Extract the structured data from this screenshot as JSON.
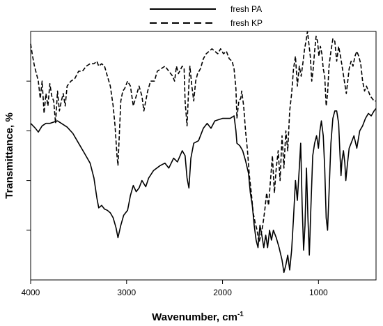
{
  "chart_data": {
    "type": "line",
    "xlabel": "Wavenumber, cm",
    "xlabel_superscript": "-1",
    "ylabel": "Transmittance, %",
    "xlim": [
      4000,
      400
    ],
    "x_reversed": true,
    "ylim": [
      0,
      100
    ],
    "y_tick_labels_shown": false,
    "grid": false,
    "legend_position": "top-center",
    "x_ticks": [
      4000,
      3000,
      2000,
      1000
    ],
    "x_tick_labels": [
      "4000",
      "3000",
      "2000",
      "1000"
    ],
    "series": [
      {
        "name": "fresh PA",
        "style": "solid",
        "color": "#000000",
        "points": [
          [
            4000,
            63
          ],
          [
            3950,
            61
          ],
          [
            3920,
            59.5
          ],
          [
            3880,
            62
          ],
          [
            3840,
            63
          ],
          [
            3800,
            63
          ],
          [
            3760,
            63.5
          ],
          [
            3720,
            64
          ],
          [
            3680,
            63
          ],
          [
            3620,
            61.5
          ],
          [
            3560,
            59
          ],
          [
            3500,
            55
          ],
          [
            3440,
            51
          ],
          [
            3380,
            47
          ],
          [
            3340,
            41
          ],
          [
            3310,
            33
          ],
          [
            3290,
            29
          ],
          [
            3260,
            30
          ],
          [
            3230,
            28.5
          ],
          [
            3200,
            28
          ],
          [
            3170,
            27
          ],
          [
            3140,
            25
          ],
          [
            3110,
            21
          ],
          [
            3090,
            17
          ],
          [
            3060,
            22
          ],
          [
            3030,
            26
          ],
          [
            2990,
            28
          ],
          [
            2960,
            34
          ],
          [
            2930,
            38
          ],
          [
            2900,
            35.5
          ],
          [
            2870,
            37
          ],
          [
            2840,
            40
          ],
          [
            2800,
            37.5
          ],
          [
            2770,
            41
          ],
          [
            2720,
            44
          ],
          [
            2650,
            46
          ],
          [
            2600,
            47
          ],
          [
            2560,
            45
          ],
          [
            2510,
            49
          ],
          [
            2470,
            47.5
          ],
          [
            2420,
            52
          ],
          [
            2390,
            50
          ],
          [
            2370,
            41
          ],
          [
            2350,
            37
          ],
          [
            2330,
            49
          ],
          [
            2300,
            55
          ],
          [
            2250,
            56
          ],
          [
            2200,
            61
          ],
          [
            2160,
            63
          ],
          [
            2120,
            61
          ],
          [
            2080,
            64
          ],
          [
            2040,
            64.5
          ],
          [
            2000,
            65
          ],
          [
            1960,
            65
          ],
          [
            1920,
            65
          ],
          [
            1880,
            66
          ],
          [
            1860,
            60
          ],
          [
            1850,
            55
          ],
          [
            1820,
            54
          ],
          [
            1790,
            52
          ],
          [
            1760,
            48
          ],
          [
            1730,
            43
          ],
          [
            1710,
            35
          ],
          [
            1690,
            30
          ],
          [
            1670,
            22
          ],
          [
            1650,
            16
          ],
          [
            1630,
            13
          ],
          [
            1610,
            22
          ],
          [
            1590,
            18
          ],
          [
            1570,
            13
          ],
          [
            1550,
            18
          ],
          [
            1530,
            13
          ],
          [
            1510,
            20
          ],
          [
            1490,
            16
          ],
          [
            1470,
            20
          ],
          [
            1440,
            17
          ],
          [
            1410,
            13
          ],
          [
            1380,
            8
          ],
          [
            1360,
            3
          ],
          [
            1340,
            6
          ],
          [
            1320,
            10
          ],
          [
            1300,
            4
          ],
          [
            1280,
            12
          ],
          [
            1260,
            25
          ],
          [
            1240,
            40
          ],
          [
            1220,
            32
          ],
          [
            1200,
            45
          ],
          [
            1185,
            55
          ],
          [
            1170,
            30
          ],
          [
            1155,
            12
          ],
          [
            1140,
            22
          ],
          [
            1125,
            45
          ],
          [
            1110,
            25
          ],
          [
            1095,
            10
          ],
          [
            1080,
            28
          ],
          [
            1060,
            50
          ],
          [
            1040,
            55
          ],
          [
            1020,
            58
          ],
          [
            1000,
            53
          ],
          [
            985,
            60
          ],
          [
            970,
            64
          ],
          [
            950,
            58
          ],
          [
            935,
            45
          ],
          [
            920,
            25
          ],
          [
            905,
            20
          ],
          [
            890,
            35
          ],
          [
            870,
            55
          ],
          [
            850,
            65
          ],
          [
            830,
            68
          ],
          [
            810,
            68
          ],
          [
            790,
            63
          ],
          [
            775,
            50
          ],
          [
            765,
            42
          ],
          [
            755,
            48
          ],
          [
            740,
            52
          ],
          [
            725,
            47
          ],
          [
            715,
            40
          ],
          [
            700,
            46
          ],
          [
            680,
            53
          ],
          [
            660,
            55
          ],
          [
            630,
            58
          ],
          [
            600,
            53
          ],
          [
            570,
            60
          ],
          [
            540,
            62
          ],
          [
            510,
            65
          ],
          [
            480,
            67
          ],
          [
            450,
            66
          ],
          [
            420,
            68
          ],
          [
            400,
            69
          ]
        ]
      },
      {
        "name": "fresh KP",
        "style": "dashed",
        "color": "#000000",
        "points": [
          [
            4000,
            95
          ],
          [
            3980,
            90
          ],
          [
            3960,
            86
          ],
          [
            3940,
            83
          ],
          [
            3920,
            80
          ],
          [
            3900,
            73
          ],
          [
            3880,
            80
          ],
          [
            3860,
            67
          ],
          [
            3840,
            75
          ],
          [
            3820,
            70
          ],
          [
            3800,
            79
          ],
          [
            3780,
            74
          ],
          [
            3760,
            72
          ],
          [
            3740,
            63
          ],
          [
            3720,
            76
          ],
          [
            3700,
            68
          ],
          [
            3680,
            72
          ],
          [
            3660,
            75
          ],
          [
            3640,
            70
          ],
          [
            3620,
            78
          ],
          [
            3580,
            80
          ],
          [
            3540,
            81
          ],
          [
            3500,
            84
          ],
          [
            3460,
            84
          ],
          [
            3420,
            86
          ],
          [
            3380,
            87
          ],
          [
            3340,
            87
          ],
          [
            3310,
            88
          ],
          [
            3290,
            86
          ],
          [
            3260,
            87
          ],
          [
            3230,
            86
          ],
          [
            3200,
            82
          ],
          [
            3170,
            78
          ],
          [
            3140,
            70
          ],
          [
            3120,
            62
          ],
          [
            3100,
            50
          ],
          [
            3090,
            46
          ],
          [
            3080,
            55
          ],
          [
            3060,
            72
          ],
          [
            3040,
            76
          ],
          [
            3020,
            77
          ],
          [
            2990,
            80
          ],
          [
            2960,
            78
          ],
          [
            2930,
            70
          ],
          [
            2900,
            74
          ],
          [
            2870,
            78
          ],
          [
            2840,
            74
          ],
          [
            2820,
            68
          ],
          [
            2800,
            72
          ],
          [
            2780,
            76
          ],
          [
            2750,
            80
          ],
          [
            2710,
            80
          ],
          [
            2680,
            84
          ],
          [
            2640,
            85
          ],
          [
            2600,
            86
          ],
          [
            2560,
            84
          ],
          [
            2520,
            82
          ],
          [
            2500,
            80
          ],
          [
            2480,
            86
          ],
          [
            2460,
            83
          ],
          [
            2420,
            86
          ],
          [
            2400,
            85
          ],
          [
            2390,
            72
          ],
          [
            2370,
            62
          ],
          [
            2355,
            75
          ],
          [
            2340,
            86
          ],
          [
            2320,
            78
          ],
          [
            2300,
            72
          ],
          [
            2280,
            80
          ],
          [
            2260,
            83
          ],
          [
            2230,
            85
          ],
          [
            2200,
            89
          ],
          [
            2170,
            91
          ],
          [
            2140,
            92
          ],
          [
            2110,
            93
          ],
          [
            2080,
            92
          ],
          [
            2050,
            91
          ],
          [
            2020,
            93
          ],
          [
            1990,
            91
          ],
          [
            1960,
            92
          ],
          [
            1930,
            89
          ],
          [
            1900,
            88
          ],
          [
            1880,
            85
          ],
          [
            1860,
            77
          ],
          [
            1850,
            65
          ],
          [
            1830,
            72
          ],
          [
            1810,
            73
          ],
          [
            1800,
            76
          ],
          [
            1780,
            70
          ],
          [
            1760,
            60
          ],
          [
            1740,
            52
          ],
          [
            1720,
            42
          ],
          [
            1700,
            35
          ],
          [
            1680,
            27
          ],
          [
            1660,
            23
          ],
          [
            1640,
            20
          ],
          [
            1620,
            15
          ],
          [
            1600,
            18
          ],
          [
            1580,
            22
          ],
          [
            1560,
            28
          ],
          [
            1540,
            35
          ],
          [
            1520,
            30
          ],
          [
            1500,
            40
          ],
          [
            1480,
            50
          ],
          [
            1460,
            35
          ],
          [
            1440,
            45
          ],
          [
            1420,
            52
          ],
          [
            1400,
            40
          ],
          [
            1380,
            58
          ],
          [
            1360,
            45
          ],
          [
            1340,
            60
          ],
          [
            1320,
            52
          ],
          [
            1300,
            68
          ],
          [
            1280,
            75
          ],
          [
            1260,
            85
          ],
          [
            1240,
            90
          ],
          [
            1220,
            78
          ],
          [
            1200,
            86
          ],
          [
            1180,
            82
          ],
          [
            1160,
            88
          ],
          [
            1145,
            93
          ],
          [
            1130,
            96
          ],
          [
            1115,
            100
          ],
          [
            1100,
            95
          ],
          [
            1085,
            90
          ],
          [
            1070,
            80
          ],
          [
            1055,
            85
          ],
          [
            1040,
            92
          ],
          [
            1025,
            98
          ],
          [
            1010,
            96
          ],
          [
            995,
            90
          ],
          [
            980,
            94
          ],
          [
            965,
            91
          ],
          [
            950,
            85
          ],
          [
            935,
            82
          ],
          [
            920,
            70
          ],
          [
            905,
            75
          ],
          [
            890,
            86
          ],
          [
            870,
            92
          ],
          [
            850,
            97
          ],
          [
            830,
            96
          ],
          [
            810,
            88
          ],
          [
            790,
            94
          ],
          [
            770,
            90
          ],
          [
            750,
            85
          ],
          [
            730,
            80
          ],
          [
            710,
            75
          ],
          [
            695,
            80
          ],
          [
            680,
            85
          ],
          [
            660,
            88
          ],
          [
            640,
            86
          ],
          [
            620,
            90
          ],
          [
            600,
            92
          ],
          [
            580,
            90
          ],
          [
            560,
            87
          ],
          [
            540,
            80
          ],
          [
            520,
            76
          ],
          [
            500,
            78
          ],
          [
            480,
            76
          ],
          [
            460,
            74
          ],
          [
            440,
            73
          ],
          [
            420,
            72
          ],
          [
            400,
            72
          ]
        ]
      }
    ]
  }
}
